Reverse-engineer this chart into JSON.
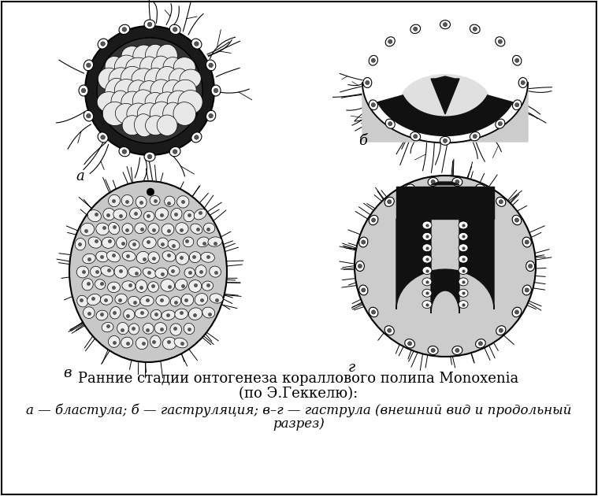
{
  "title_line1": "Ранние стадии онтогенеза кораллового полипа Monoxenia",
  "title_line2": "(по Э.Геккелю):",
  "caption_italic": "а — бластула; б — гаструляция; в–г — гаструла (внешний вид и продольный",
  "caption_line2": "разрез)",
  "label_a": "а",
  "label_b": "б",
  "label_v": "в",
  "label_g": "г",
  "bg_color": "#ffffff",
  "text_color": "#000000",
  "title_fontsize": 13,
  "caption_fontsize": 12,
  "label_fontsize": 13,
  "fig_width": 7.59,
  "fig_height": 6.3,
  "dpi": 100
}
